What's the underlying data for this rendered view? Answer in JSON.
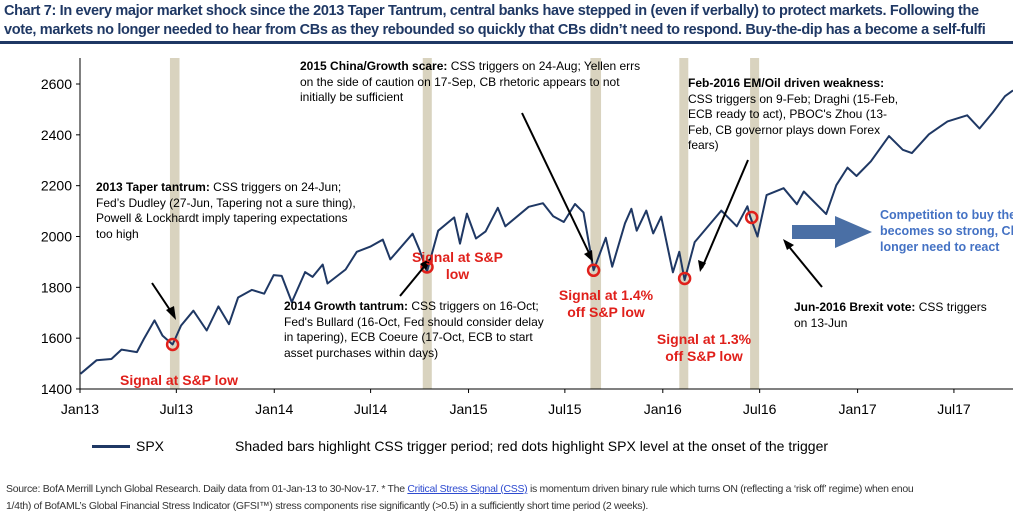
{
  "title": {
    "line1": "Chart 7: In every major market shock since the 2013 Taper Tantrum, central banks have stepped in (even if verbally) to protect markets. Following the",
    "line2": "vote, markets no longer needed to hear from CBs as they rebounded so quickly that CBs didn’t need to respond. Buy-the-dip has a become a self-fulfi"
  },
  "chart_data": {
    "type": "line",
    "ylim": [
      1400,
      2700
    ],
    "yticks": [
      "1400",
      "1600",
      "1800",
      "2000",
      "2200",
      "2400",
      "2600"
    ],
    "xticks": [
      {
        "label": "Jan13",
        "date": "2013-01-01"
      },
      {
        "label": "Jul13",
        "date": "2013-07-01"
      },
      {
        "label": "Jan14",
        "date": "2014-01-01"
      },
      {
        "label": "Jul14",
        "date": "2014-07-01"
      },
      {
        "label": "Jan15",
        "date": "2015-01-01"
      },
      {
        "label": "Jul15",
        "date": "2015-07-01"
      },
      {
        "label": "Jan16",
        "date": "2016-01-01"
      },
      {
        "label": "Jul16",
        "date": "2016-07-01"
      },
      {
        "label": "Jan17",
        "date": "2017-01-01"
      },
      {
        "label": "Jul17",
        "date": "2017-07-01"
      }
    ],
    "xlim": [
      "2013-01-01",
      "2017-10-20"
    ],
    "grid": false,
    "legend": "bottom-left",
    "series": [
      {
        "name": "SPX",
        "color": "#1f3864",
        "points": [
          [
            "2013-01-02",
            1460
          ],
          [
            "2013-02-01",
            1513
          ],
          [
            "2013-03-01",
            1518
          ],
          [
            "2013-03-20",
            1555
          ],
          [
            "2013-04-18",
            1545
          ],
          [
            "2013-05-01",
            1597
          ],
          [
            "2013-05-21",
            1670
          ],
          [
            "2013-06-05",
            1610
          ],
          [
            "2013-06-24",
            1575
          ],
          [
            "2013-07-10",
            1650
          ],
          [
            "2013-08-02",
            1708
          ],
          [
            "2013-08-27",
            1630
          ],
          [
            "2013-09-18",
            1725
          ],
          [
            "2013-10-08",
            1655
          ],
          [
            "2013-10-25",
            1760
          ],
          [
            "2013-11-20",
            1790
          ],
          [
            "2013-12-13",
            1775
          ],
          [
            "2013-12-31",
            1848
          ],
          [
            "2014-01-15",
            1845
          ],
          [
            "2014-02-03",
            1742
          ],
          [
            "2014-02-28",
            1860
          ],
          [
            "2014-03-14",
            1841
          ],
          [
            "2014-04-02",
            1890
          ],
          [
            "2014-04-11",
            1815
          ],
          [
            "2014-05-15",
            1870
          ],
          [
            "2014-06-05",
            1940
          ],
          [
            "2014-06-30",
            1960
          ],
          [
            "2014-07-24",
            1988
          ],
          [
            "2014-08-07",
            1910
          ],
          [
            "2014-09-18",
            2011
          ],
          [
            "2014-10-01",
            1946
          ],
          [
            "2014-10-15",
            1862
          ],
          [
            "2014-11-05",
            2023
          ],
          [
            "2014-12-05",
            2075
          ],
          [
            "2014-12-16",
            1972
          ],
          [
            "2014-12-29",
            2090
          ],
          [
            "2015-01-15",
            1992
          ],
          [
            "2015-02-02",
            2020
          ],
          [
            "2015-02-25",
            2113
          ],
          [
            "2015-03-11",
            2040
          ],
          [
            "2015-04-24",
            2117
          ],
          [
            "2015-05-21",
            2131
          ],
          [
            "2015-06-09",
            2080
          ],
          [
            "2015-06-29",
            2057
          ],
          [
            "2015-07-20",
            2128
          ],
          [
            "2015-08-05",
            2095
          ],
          [
            "2015-08-24",
            1867
          ],
          [
            "2015-09-16",
            1995
          ],
          [
            "2015-09-28",
            1881
          ],
          [
            "2015-10-22",
            2052
          ],
          [
            "2015-11-03",
            2109
          ],
          [
            "2015-11-13",
            2023
          ],
          [
            "2015-12-01",
            2102
          ],
          [
            "2015-12-14",
            2012
          ],
          [
            "2015-12-29",
            2078
          ],
          [
            "2016-01-20",
            1859
          ],
          [
            "2016-02-01",
            1940
          ],
          [
            "2016-02-11",
            1829
          ],
          [
            "2016-03-01",
            1978
          ],
          [
            "2016-04-20",
            2102
          ],
          [
            "2016-05-19",
            2040
          ],
          [
            "2016-06-08",
            2119
          ],
          [
            "2016-06-13",
            2079
          ],
          [
            "2016-06-27",
            2000
          ],
          [
            "2016-07-14",
            2163
          ],
          [
            "2016-08-15",
            2190
          ],
          [
            "2016-09-09",
            2127
          ],
          [
            "2016-09-22",
            2177
          ],
          [
            "2016-11-03",
            2088
          ],
          [
            "2016-11-22",
            2202
          ],
          [
            "2016-12-13",
            2271
          ],
          [
            "2016-12-30",
            2238
          ],
          [
            "2017-01-26",
            2296
          ],
          [
            "2017-03-01",
            2395
          ],
          [
            "2017-03-27",
            2341
          ],
          [
            "2017-04-13",
            2328
          ],
          [
            "2017-05-15",
            2402
          ],
          [
            "2017-06-19",
            2453
          ],
          [
            "2017-07-26",
            2477
          ],
          [
            "2017-08-18",
            2425
          ],
          [
            "2017-09-12",
            2488
          ],
          [
            "2017-10-05",
            2552
          ],
          [
            "2017-10-20",
            2575
          ]
        ]
      }
    ],
    "shaded_periods": [
      [
        "2013-06-19",
        "2013-07-07"
      ],
      [
        "2014-10-07",
        "2014-10-24"
      ],
      [
        "2015-08-18",
        "2015-09-07"
      ],
      [
        "2016-02-01",
        "2016-02-17"
      ],
      [
        "2016-06-13",
        "2016-06-30"
      ]
    ],
    "shade_color": "#d9d3bf",
    "signal_points": [
      [
        "2013-06-24",
        1575
      ],
      [
        "2014-10-15",
        1880
      ],
      [
        "2015-08-24",
        1867
      ],
      [
        "2016-02-11",
        1835
      ],
      [
        "2016-06-16",
        2075
      ]
    ],
    "signal_color": "#e0201b",
    "legend_label": "SPX",
    "legend_note": "Shaded bars highlight CSS trigger period; red dots highlight SPX level at the onset of the trigger"
  },
  "annotations": {
    "taper_bold": "2013 Taper tantrum:",
    "taper_text": " CSS triggers on 24-Jun; Fed’s Dudley (27-Jun, Tapering not a sure thing), Powell & Lockhardt imply tapering expectations too high",
    "growth2014_bold": "2014 Growth tantrum:",
    "growth2014_text": " CSS triggers on 16-Oct; Fed's Bullard (16-Oct, Fed should consider delay in tapering), ECB Coeure (17-Oct, ECB to start asset purchases within days)",
    "china_bold": "2015 China/Growth scare:",
    "china_text": " CSS triggers on 24-Aug; Yellen errs on the side of caution on 17-Sep, CB rhetoric appears to not initially be sufficient",
    "feb2016_bold": "Feb-2016 EM/Oil driven weakness:",
    "feb2016_text": " CSS triggers on 9-Feb; Draghi (15-Feb, ECB ready to act), PBOC's Zhou (13-Feb, CB governor plays down Forex fears)",
    "brexit_bold": "Jun-2016 Brexit vote:",
    "brexit_text": " CSS triggers on 13-Jun",
    "signal1": "Signal at S&P low",
    "signal2": "Signal at S&P low",
    "signal3": "Signal at 1.4% off S&P low",
    "signal4": "Signal at 1.3% off S&P low",
    "blue_line1": "Competition to buy the",
    "blue_line2": "becomes so strong, Cl",
    "blue_line3": "longer need to react"
  },
  "source": {
    "pre": "Source: BofA Merrill Lynch Global Research. Daily data from 01-Jan-13 to 30-Nov-17. * The ",
    "link": "Critical Stress Signal (CSS)",
    "post": " is momentum driven binary rule which turns ON (reflecting a ‘risk off’ regime) when enou",
    "line2": "1/4th) of BofAML’s Global Financial Stress Indicator (GFSI™) stress components rise significantly (>0.5) in a sufficiently short time period (2 weeks)."
  }
}
